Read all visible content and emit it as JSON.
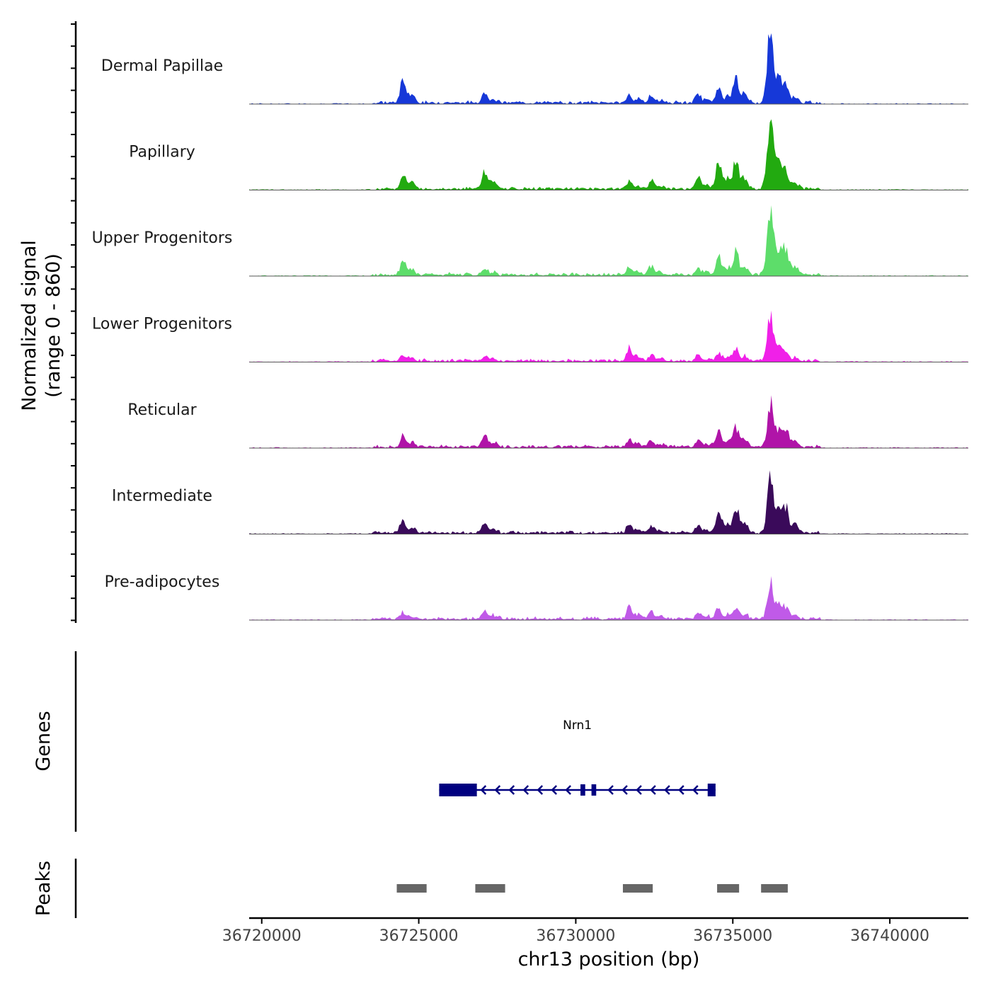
{
  "chart_data": {
    "type": "area",
    "chromosome": "chr13",
    "y_axis_title_line1": "Normalized signal",
    "y_axis_title_line2": "(range 0 - 860)",
    "x_axis_title": "chr13 position (bp)",
    "x_range": [
      36719600,
      36742500
    ],
    "x_ticks": [
      {
        "value": 36720000,
        "label": "36720000"
      },
      {
        "value": 36725000,
        "label": "36725000"
      },
      {
        "value": 36730000,
        "label": "36730000"
      },
      {
        "value": 36735000,
        "label": "36735000"
      },
      {
        "value": 36740000,
        "label": "36740000"
      }
    ],
    "peak_profile_centers": [
      36724500,
      36727100,
      36731700,
      36732400,
      36733900,
      36734550,
      36735100,
      36736200,
      36736700
    ],
    "tracks": [
      {
        "label": "Dermal Papillae",
        "color": "#1638d8",
        "peaks": [
          0.35,
          0.15,
          0.12,
          0.1,
          0.12,
          0.22,
          0.35,
          1.0,
          0.2
        ]
      },
      {
        "label": "Papillary",
        "color": "#22aa10",
        "peaks": [
          0.22,
          0.25,
          0.1,
          0.12,
          0.15,
          0.4,
          0.4,
          1.0,
          0.25
        ]
      },
      {
        "label": "Upper Progenitors",
        "color": "#5ddd6a",
        "peaks": [
          0.22,
          0.08,
          0.1,
          0.12,
          0.1,
          0.3,
          0.32,
          1.0,
          0.35
        ]
      },
      {
        "label": "Lower Progenitors",
        "color": "#f020e8",
        "peaks": [
          0.08,
          0.08,
          0.18,
          0.08,
          0.08,
          0.12,
          0.18,
          0.62,
          0.1
        ]
      },
      {
        "label": "Reticular",
        "color": "#b014a8",
        "peaks": [
          0.15,
          0.18,
          0.12,
          0.1,
          0.1,
          0.2,
          0.28,
          0.6,
          0.22
        ]
      },
      {
        "label": "Intermediate",
        "color": "#3a0a5a",
        "peaks": [
          0.2,
          0.15,
          0.1,
          0.1,
          0.1,
          0.3,
          0.38,
          0.82,
          0.32
        ]
      },
      {
        "label": "Pre-adipocytes",
        "color": "#c05ae8",
        "peaks": [
          0.1,
          0.12,
          0.18,
          0.1,
          0.1,
          0.15,
          0.18,
          0.55,
          0.15
        ]
      }
    ],
    "genes_panel_label": "Genes",
    "gene": {
      "name": "Nrn1",
      "strand": "-",
      "start": 36725650,
      "end": 36734450,
      "color": "#000080",
      "exons": [
        [
          36725650,
          36726850
        ],
        [
          36730150,
          36730300
        ],
        [
          36730500,
          36730650
        ],
        [
          36734200,
          36734450
        ]
      ]
    },
    "peaks_panel_label": "Peaks",
    "peak_color": "#666666",
    "peak_regions": [
      [
        36724300,
        36725250
      ],
      [
        36726800,
        36727750
      ],
      [
        36731500,
        36732450
      ],
      [
        36734500,
        36735200
      ],
      [
        36735900,
        36736750
      ]
    ]
  }
}
